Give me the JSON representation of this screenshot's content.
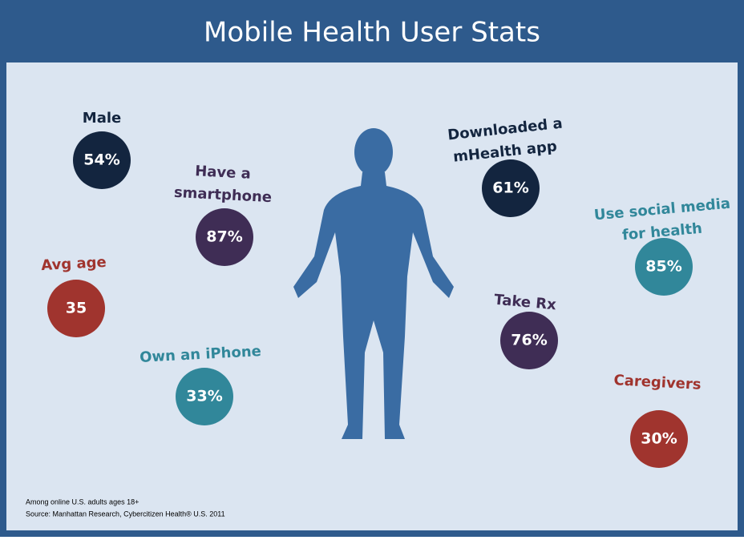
{
  "header": {
    "title": "Mobile Health User Stats"
  },
  "stats": [
    {
      "label": [
        "Male"
      ],
      "value": "54%",
      "color": "#13253f"
    },
    {
      "label": [
        "Have a",
        "smartphone"
      ],
      "value": "87%",
      "color": "#3f2d55"
    },
    {
      "label": [
        "Avg age"
      ],
      "value": "35",
      "color": "#a0342e"
    },
    {
      "label": [
        "Own an iPhone"
      ],
      "value": "33%",
      "color": "#31879a"
    },
    {
      "label": [
        "Downloaded a",
        "mHealth app"
      ],
      "value": "61%",
      "color": "#13253f"
    },
    {
      "label": [
        "Use social media",
        "for health"
      ],
      "value": "85%",
      "color": "#31879a"
    },
    {
      "label": [
        "Take Rx"
      ],
      "value": "76%",
      "color": "#3f2d55"
    },
    {
      "label": [
        "Caregivers"
      ],
      "value": "30%",
      "color": "#a0342e"
    }
  ],
  "footnote": [
    "Among online U.S. adults ages 18+",
    "Source: Manhattan Research, Cybercitizen Health® U.S. 2011"
  ]
}
